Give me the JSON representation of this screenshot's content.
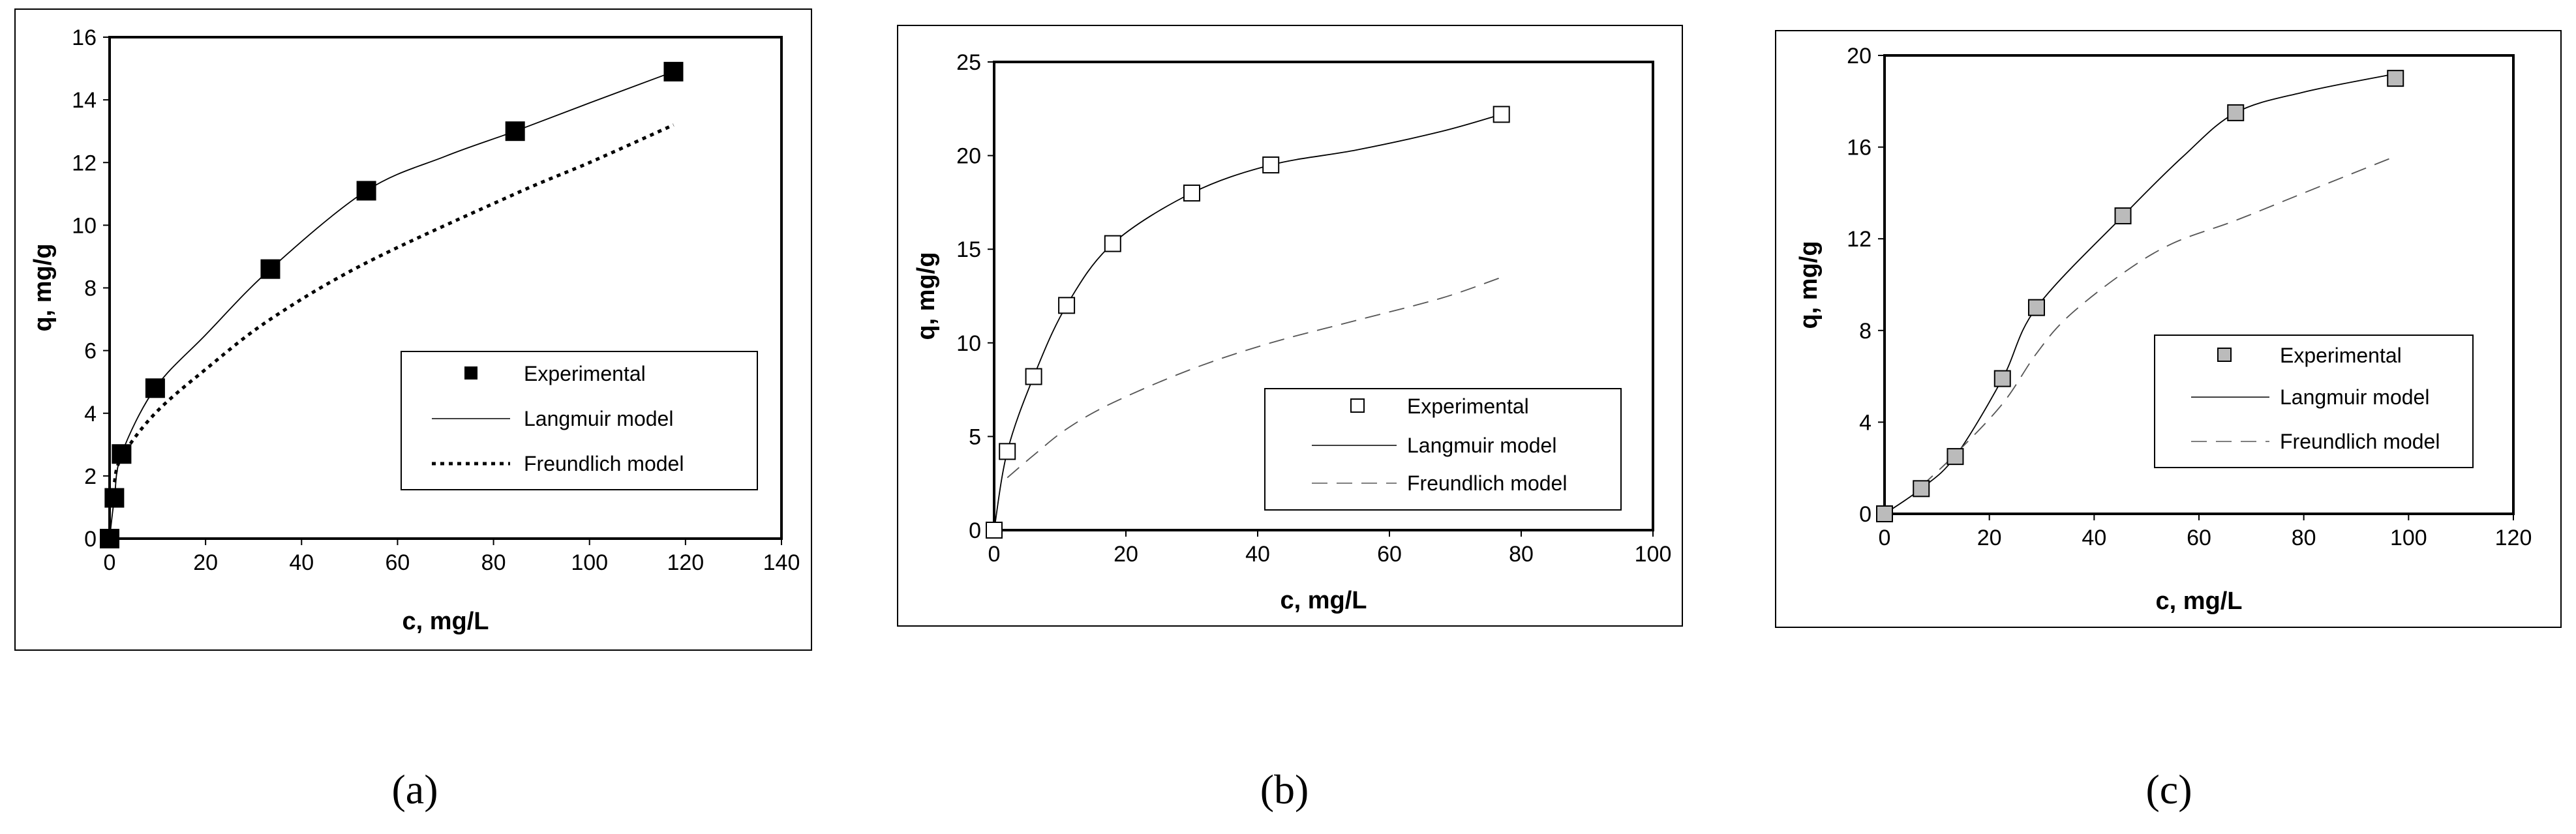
{
  "captions": [
    "(a)",
    "(b)",
    "(c)"
  ],
  "chart_data": [
    {
      "type": "scatter",
      "caption": "(a)",
      "xlabel": "c, mg/L",
      "ylabel": "q, mg/g",
      "xlim": [
        0,
        140
      ],
      "ylim": [
        0,
        16
      ],
      "xticks": [
        0,
        20,
        40,
        60,
        80,
        100,
        120,
        140
      ],
      "yticks": [
        0,
        2,
        4,
        6,
        8,
        10,
        12,
        14,
        16
      ],
      "marker": "square-filled",
      "grid": false,
      "legend_position": "lower-right",
      "series": [
        {
          "name": "Experimental",
          "kind": "markers",
          "x": [
            0,
            1,
            2.5,
            9.5,
            33.5,
            53.5,
            84.5,
            117.5
          ],
          "y": [
            0,
            1.3,
            2.7,
            4.8,
            8.6,
            11.1,
            13.0,
            14.9
          ]
        },
        {
          "name": "Langmuir model",
          "kind": "line-solid",
          "x": [
            0,
            1,
            2.5,
            9.5,
            20,
            33.5,
            53.5,
            70,
            84.5,
            100,
            117.5
          ],
          "y": [
            0,
            1.3,
            2.7,
            4.8,
            6.5,
            8.6,
            11.1,
            12.2,
            13.0,
            13.9,
            14.9
          ]
        },
        {
          "name": "Freundlich model",
          "kind": "line-dotted",
          "x": [
            1,
            2.5,
            9.5,
            20,
            33.5,
            53.5,
            84.5,
            100,
            117.5
          ],
          "y": [
            1.8,
            2.6,
            4.0,
            5.4,
            7.0,
            8.8,
            11.0,
            12.0,
            13.2
          ]
        }
      ]
    },
    {
      "type": "scatter",
      "caption": "(b)",
      "xlabel": "c, mg/L",
      "ylabel": "q, mg/g",
      "xlim": [
        0,
        100
      ],
      "ylim": [
        0,
        25
      ],
      "xticks": [
        0,
        20,
        40,
        60,
        80,
        100
      ],
      "yticks": [
        0,
        5,
        10,
        15,
        20,
        25
      ],
      "marker": "square-open",
      "grid": false,
      "legend_position": "lower-right",
      "series": [
        {
          "name": "Experimental",
          "kind": "markers",
          "x": [
            0,
            2,
            6,
            11,
            18,
            30,
            42,
            77
          ],
          "y": [
            0,
            4.2,
            8.2,
            12.0,
            15.3,
            18.0,
            19.5,
            22.2
          ]
        },
        {
          "name": "Langmuir model",
          "kind": "line-solid",
          "x": [
            0,
            2,
            6,
            11,
            18,
            30,
            42,
            55,
            68,
            77
          ],
          "y": [
            0,
            4.2,
            8.2,
            12.0,
            15.3,
            18.0,
            19.5,
            20.3,
            21.3,
            22.2
          ]
        },
        {
          "name": "Freundlich model",
          "kind": "line-dashed",
          "x": [
            2,
            6,
            11,
            18,
            30,
            42,
            55,
            68,
            77
          ],
          "y": [
            2.8,
            4.0,
            5.4,
            6.8,
            8.6,
            10.0,
            11.2,
            12.4,
            13.5
          ]
        }
      ]
    },
    {
      "type": "scatter",
      "caption": "(c)",
      "xlabel": "c, mg/L",
      "ylabel": "q, mg/g",
      "xlim": [
        0,
        120
      ],
      "ylim": [
        0,
        20
      ],
      "xticks": [
        0,
        20,
        40,
        60,
        80,
        100,
        120
      ],
      "yticks": [
        0,
        4,
        8,
        12,
        16,
        20
      ],
      "marker": "square-gray",
      "grid": false,
      "legend_position": "upper-right",
      "series": [
        {
          "name": "Experimental",
          "kind": "markers",
          "x": [
            0,
            7,
            13.5,
            22.5,
            29,
            45.5,
            67,
            97.5
          ],
          "y": [
            0,
            1.1,
            2.5,
            5.9,
            9.0,
            13.0,
            17.5,
            19.0
          ]
        },
        {
          "name": "Langmuir model",
          "kind": "line-solid",
          "x": [
            0,
            7,
            13.5,
            22.5,
            29,
            45.5,
            57,
            67,
            80,
            97.5
          ],
          "y": [
            0,
            1.1,
            2.5,
            5.9,
            9.0,
            13.0,
            15.6,
            17.5,
            18.4,
            19.2
          ]
        },
        {
          "name": "Freundlich model",
          "kind": "line-dashed",
          "x": [
            7,
            13.5,
            22.5,
            29,
            35,
            45.5,
            55,
            67,
            80,
            97.5
          ],
          "y": [
            1.2,
            2.6,
            4.8,
            7.0,
            8.6,
            10.5,
            11.8,
            12.8,
            14.0,
            15.6
          ]
        }
      ]
    }
  ]
}
